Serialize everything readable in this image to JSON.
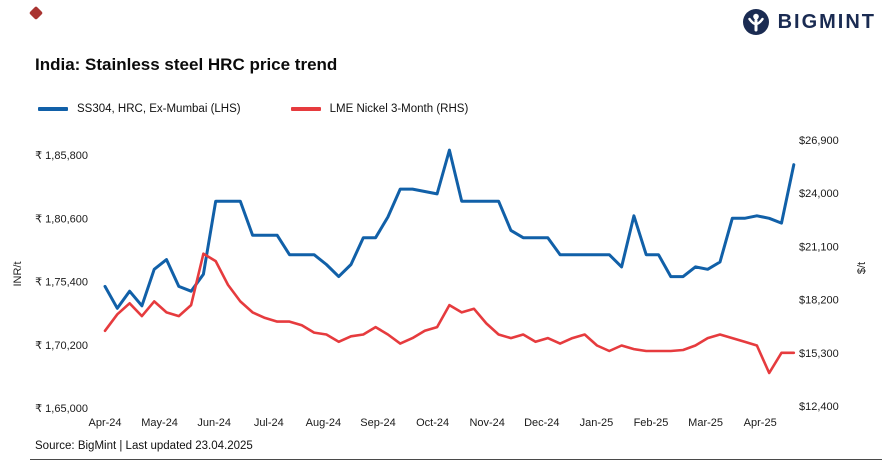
{
  "logo": {
    "text": "BIGMINT",
    "color": "#1a2b52"
  },
  "title": "India: Stainless steel HRC price trend",
  "legend": [
    {
      "label": "SS304, HRC, Ex-Mumbai (LHS)",
      "color": "#1160a8"
    },
    {
      "label": "LME Nickel 3-Month (RHS)",
      "color": "#e63b3e"
    }
  ],
  "axis": {
    "left_title": "INR/t",
    "right_title": "$/t"
  },
  "source": "Source: BigMint | Last updated 23.04.2025",
  "chart_data": {
    "type": "line",
    "title": "India: Stainless steel HRC price trend",
    "grid": false,
    "legend_position": "top-left",
    "x_labels": [
      "Apr-24",
      "May-24",
      "Jun-24",
      "Jul-24",
      "Aug-24",
      "Sep-24",
      "Oct-24",
      "Nov-24",
      "Dec-24",
      "Jan-25",
      "Feb-25",
      "Mar-25",
      "Apr-25"
    ],
    "x_unit": "weekly points from Apr-24 to late Apr-25",
    "y_left": {
      "title": "INR/t",
      "labels": [
        "₹ 1,85,800",
        "₹ 1,80,600",
        "₹ 1,75,400",
        "₹ 1,70,200",
        "₹ 1,65,000"
      ],
      "max": 185800,
      "min": 165000
    },
    "y_right": {
      "title": "$/t",
      "labels": [
        "$26,900",
        "$24,000",
        "$21,100",
        "$18,200",
        "$15,300",
        "$12,400"
      ],
      "max": 26900,
      "min": 12400
    },
    "series": [
      {
        "name": "SS304, HRC, Ex-Mumbai (LHS)",
        "axis": "left",
        "color": "#1160a8",
        "values": [
          175000,
          173200,
          174600,
          173400,
          176400,
          177200,
          175000,
          174600,
          176000,
          182000,
          182000,
          182000,
          179200,
          179200,
          179200,
          177600,
          177600,
          177600,
          176800,
          175800,
          176800,
          179000,
          179000,
          180700,
          183000,
          183000,
          182800,
          182600,
          186200,
          182000,
          182000,
          182000,
          182000,
          179600,
          179000,
          179000,
          179000,
          177600,
          177600,
          177600,
          177600,
          177600,
          176600,
          180800,
          177600,
          177600,
          175800,
          175800,
          176600,
          176400,
          177000,
          180600,
          180600,
          180800,
          180600,
          180200,
          185000
        ]
      },
      {
        "name": "LME Nickel 3-Month (RHS)",
        "axis": "right",
        "color": "#e63b3e",
        "values": [
          16500,
          17400,
          18000,
          17300,
          18100,
          17500,
          17300,
          17900,
          20700,
          20300,
          19000,
          18100,
          17500,
          17200,
          17000,
          17000,
          16800,
          16400,
          16300,
          15900,
          16200,
          16300,
          16700,
          16300,
          15800,
          16100,
          16500,
          16700,
          17900,
          17500,
          17700,
          16900,
          16300,
          16100,
          16300,
          15900,
          16100,
          15800,
          16100,
          16300,
          15700,
          15400,
          15700,
          15500,
          15400,
          15400,
          15400,
          15450,
          15700,
          16100,
          16300,
          16100,
          15900,
          15700,
          14200,
          15300,
          15300
        ]
      }
    ]
  }
}
